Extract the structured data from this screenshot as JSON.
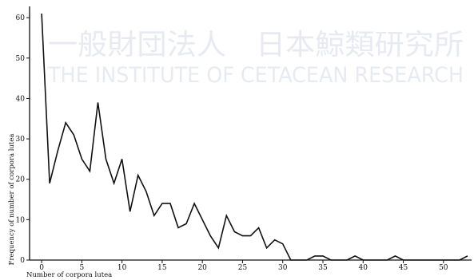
{
  "watermark": {
    "line1": "一般財団法人　日本鯨類研究所",
    "line2": "THE INSTITUTE OF CETACEAN RESEARCH"
  },
  "chart_data": {
    "type": "line",
    "xlabel": "Number of corpora lutea",
    "ylabel": "Frequency of number of corpora lutea",
    "xlim": [
      -1.5,
      53.5
    ],
    "ylim": [
      0,
      62
    ],
    "xticks": [
      0,
      5,
      10,
      15,
      20,
      25,
      30,
      35,
      40,
      45,
      50
    ],
    "yticks": [
      0,
      10,
      20,
      30,
      40,
      50,
      60
    ],
    "grid": false,
    "series": [
      {
        "points": [
          [
            0,
            61
          ],
          [
            1,
            19
          ],
          [
            2,
            27
          ],
          [
            3,
            34
          ],
          [
            4,
            31
          ],
          [
            5,
            25
          ],
          [
            6,
            22
          ],
          [
            7,
            39
          ],
          [
            8,
            25
          ],
          [
            9,
            19
          ],
          [
            10,
            25
          ],
          [
            11,
            12
          ],
          [
            12,
            21
          ],
          [
            13,
            17
          ],
          [
            14,
            11
          ],
          [
            15,
            14
          ],
          [
            16,
            14
          ],
          [
            17,
            8
          ],
          [
            18,
            9
          ],
          [
            19,
            14
          ],
          [
            20,
            10
          ],
          [
            21,
            6
          ],
          [
            22,
            3
          ],
          [
            23,
            11
          ],
          [
            24,
            7
          ],
          [
            25,
            6
          ],
          [
            26,
            6
          ],
          [
            27,
            8
          ],
          [
            28,
            3
          ],
          [
            29,
            5
          ],
          [
            30,
            4
          ],
          [
            31,
            0
          ],
          [
            32,
            0
          ],
          [
            33,
            0
          ],
          [
            34,
            1
          ],
          [
            35,
            1
          ],
          [
            36,
            0
          ],
          [
            37,
            0
          ],
          [
            38,
            0
          ],
          [
            39,
            1
          ],
          [
            40,
            0
          ],
          [
            41,
            0
          ],
          [
            42,
            0
          ],
          [
            43,
            0
          ],
          [
            44,
            1
          ],
          [
            45,
            0
          ],
          [
            46,
            0
          ],
          [
            47,
            0
          ],
          [
            48,
            0
          ],
          [
            49,
            0
          ],
          [
            50,
            0
          ],
          [
            51,
            0
          ],
          [
            52,
            0
          ],
          [
            53,
            1
          ]
        ]
      }
    ]
  }
}
